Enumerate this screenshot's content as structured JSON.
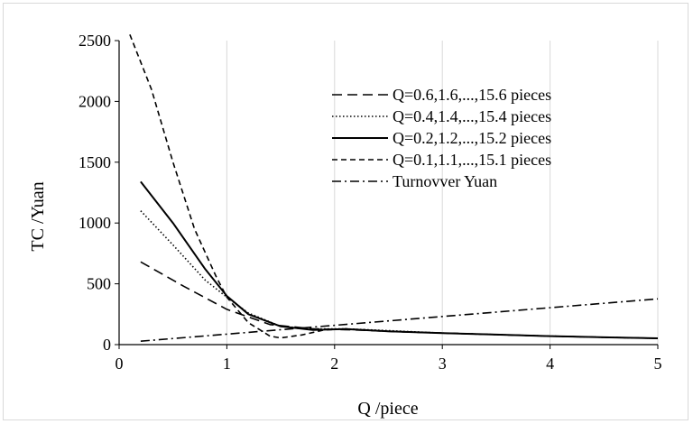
{
  "chart_data": {
    "type": "line",
    "title": "",
    "xlabel": "Q /piece",
    "ylabel": "TC /Yuan",
    "xlim": [
      0,
      5
    ],
    "ylim": [
      0,
      2500
    ],
    "xticks": [
      0,
      1,
      2,
      3,
      4,
      5
    ],
    "yticks": [
      0,
      500,
      1000,
      1500,
      2000,
      2500
    ],
    "grid": "vertical",
    "legend_position": "top-right",
    "series": [
      {
        "name": "Q=0.6,1.6,...,15.6 pieces",
        "dash": "long-dash",
        "x": [
          0.2,
          0.6,
          1.0,
          1.4,
          1.8,
          2.2,
          2.6,
          3.0,
          3.5,
          4.0,
          4.5,
          5.0
        ],
        "y": [
          680,
          480,
          290,
          165,
          130,
          120,
          105,
          95,
          82,
          70,
          60,
          52
        ]
      },
      {
        "name": "Q=0.4,1.4,...,15.4 pieces",
        "dash": "dotted",
        "x": [
          0.2,
          0.5,
          0.8,
          1.0,
          1.2,
          1.5,
          1.8,
          2.1,
          2.5,
          3.0,
          3.5,
          4.0,
          4.5,
          5.0
        ],
        "y": [
          1100,
          820,
          530,
          390,
          260,
          150,
          130,
          130,
          115,
          95,
          82,
          70,
          60,
          52
        ]
      },
      {
        "name": "Q=0.2,1.2,...,15.2 pieces",
        "dash": "solid",
        "x": [
          0.2,
          0.5,
          0.8,
          1.0,
          1.2,
          1.5,
          1.8,
          2.1,
          2.5,
          3.0,
          3.5,
          4.0,
          4.5,
          5.0
        ],
        "y": [
          1340,
          1000,
          620,
          400,
          250,
          150,
          120,
          128,
          110,
          95,
          82,
          70,
          60,
          52
        ]
      },
      {
        "name": "Q=0.1,1.1,...,15.1 pieces",
        "dash": "short-dash",
        "x": [
          0.1,
          0.3,
          0.5,
          0.7,
          0.9,
          1.0,
          1.2,
          1.4,
          1.5,
          1.7,
          1.9,
          2.1,
          2.5,
          3.0,
          3.5,
          4.0,
          4.5,
          5.0
        ],
        "y": [
          2550,
          2100,
          1500,
          950,
          560,
          390,
          180,
          70,
          55,
          80,
          120,
          130,
          110,
          95,
          82,
          70,
          60,
          52
        ]
      },
      {
        "name": "Turnovver Yuan",
        "dash": "dash-dot",
        "x": [
          0.2,
          5.0
        ],
        "y": [
          28,
          376
        ]
      }
    ]
  }
}
